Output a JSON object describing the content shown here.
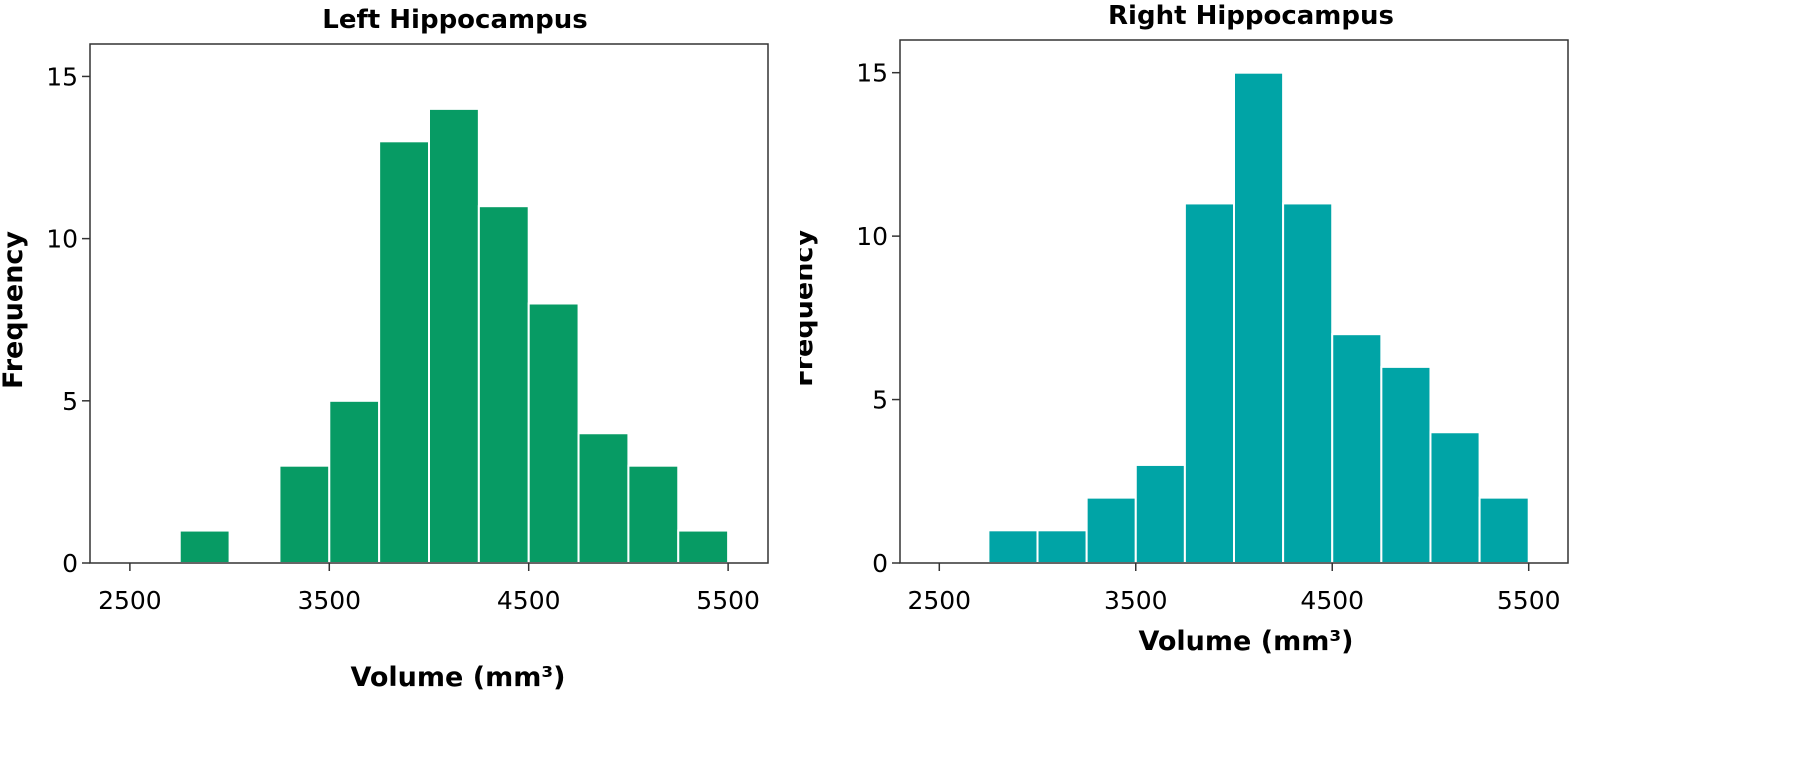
{
  "chart_data": [
    {
      "type": "bar",
      "title": "Left Hippocampus",
      "xlabel": "Volume (mm³)",
      "ylabel": "Frequency",
      "color": "#079b64",
      "bin_width": 250,
      "xlim": [
        2300,
        5700
      ],
      "ylim": [
        0,
        16
      ],
      "xticks": [
        2500,
        3500,
        4500,
        5500
      ],
      "yticks": [
        0,
        5,
        10,
        15
      ],
      "grid": false,
      "bins": [
        {
          "x": 2750,
          "value": 1
        },
        {
          "x": 3000,
          "value": 0
        },
        {
          "x": 3250,
          "value": 3
        },
        {
          "x": 3500,
          "value": 5
        },
        {
          "x": 3750,
          "value": 13
        },
        {
          "x": 4000,
          "value": 14
        },
        {
          "x": 4250,
          "value": 11
        },
        {
          "x": 4500,
          "value": 8
        },
        {
          "x": 4750,
          "value": 4
        },
        {
          "x": 5000,
          "value": 3
        },
        {
          "x": 5250,
          "value": 1
        }
      ]
    },
    {
      "type": "bar",
      "title": "Right Hippocampus",
      "xlabel": "Volume (mm³)",
      "ylabel": "Frequency",
      "color": "#00a4a6",
      "bin_width": 250,
      "xlim": [
        2300,
        5700
      ],
      "ylim": [
        0,
        16
      ],
      "xticks": [
        2500,
        3500,
        4500,
        5500
      ],
      "yticks": [
        0,
        5,
        10,
        15
      ],
      "grid": false,
      "bins": [
        {
          "x": 2750,
          "value": 1
        },
        {
          "x": 3000,
          "value": 1
        },
        {
          "x": 3250,
          "value": 2
        },
        {
          "x": 3500,
          "value": 3
        },
        {
          "x": 3750,
          "value": 11
        },
        {
          "x": 4000,
          "value": 15
        },
        {
          "x": 4250,
          "value": 11
        },
        {
          "x": 4500,
          "value": 7
        },
        {
          "x": 4750,
          "value": 6
        },
        {
          "x": 5000,
          "value": 4
        },
        {
          "x": 5250,
          "value": 2
        }
      ]
    }
  ]
}
